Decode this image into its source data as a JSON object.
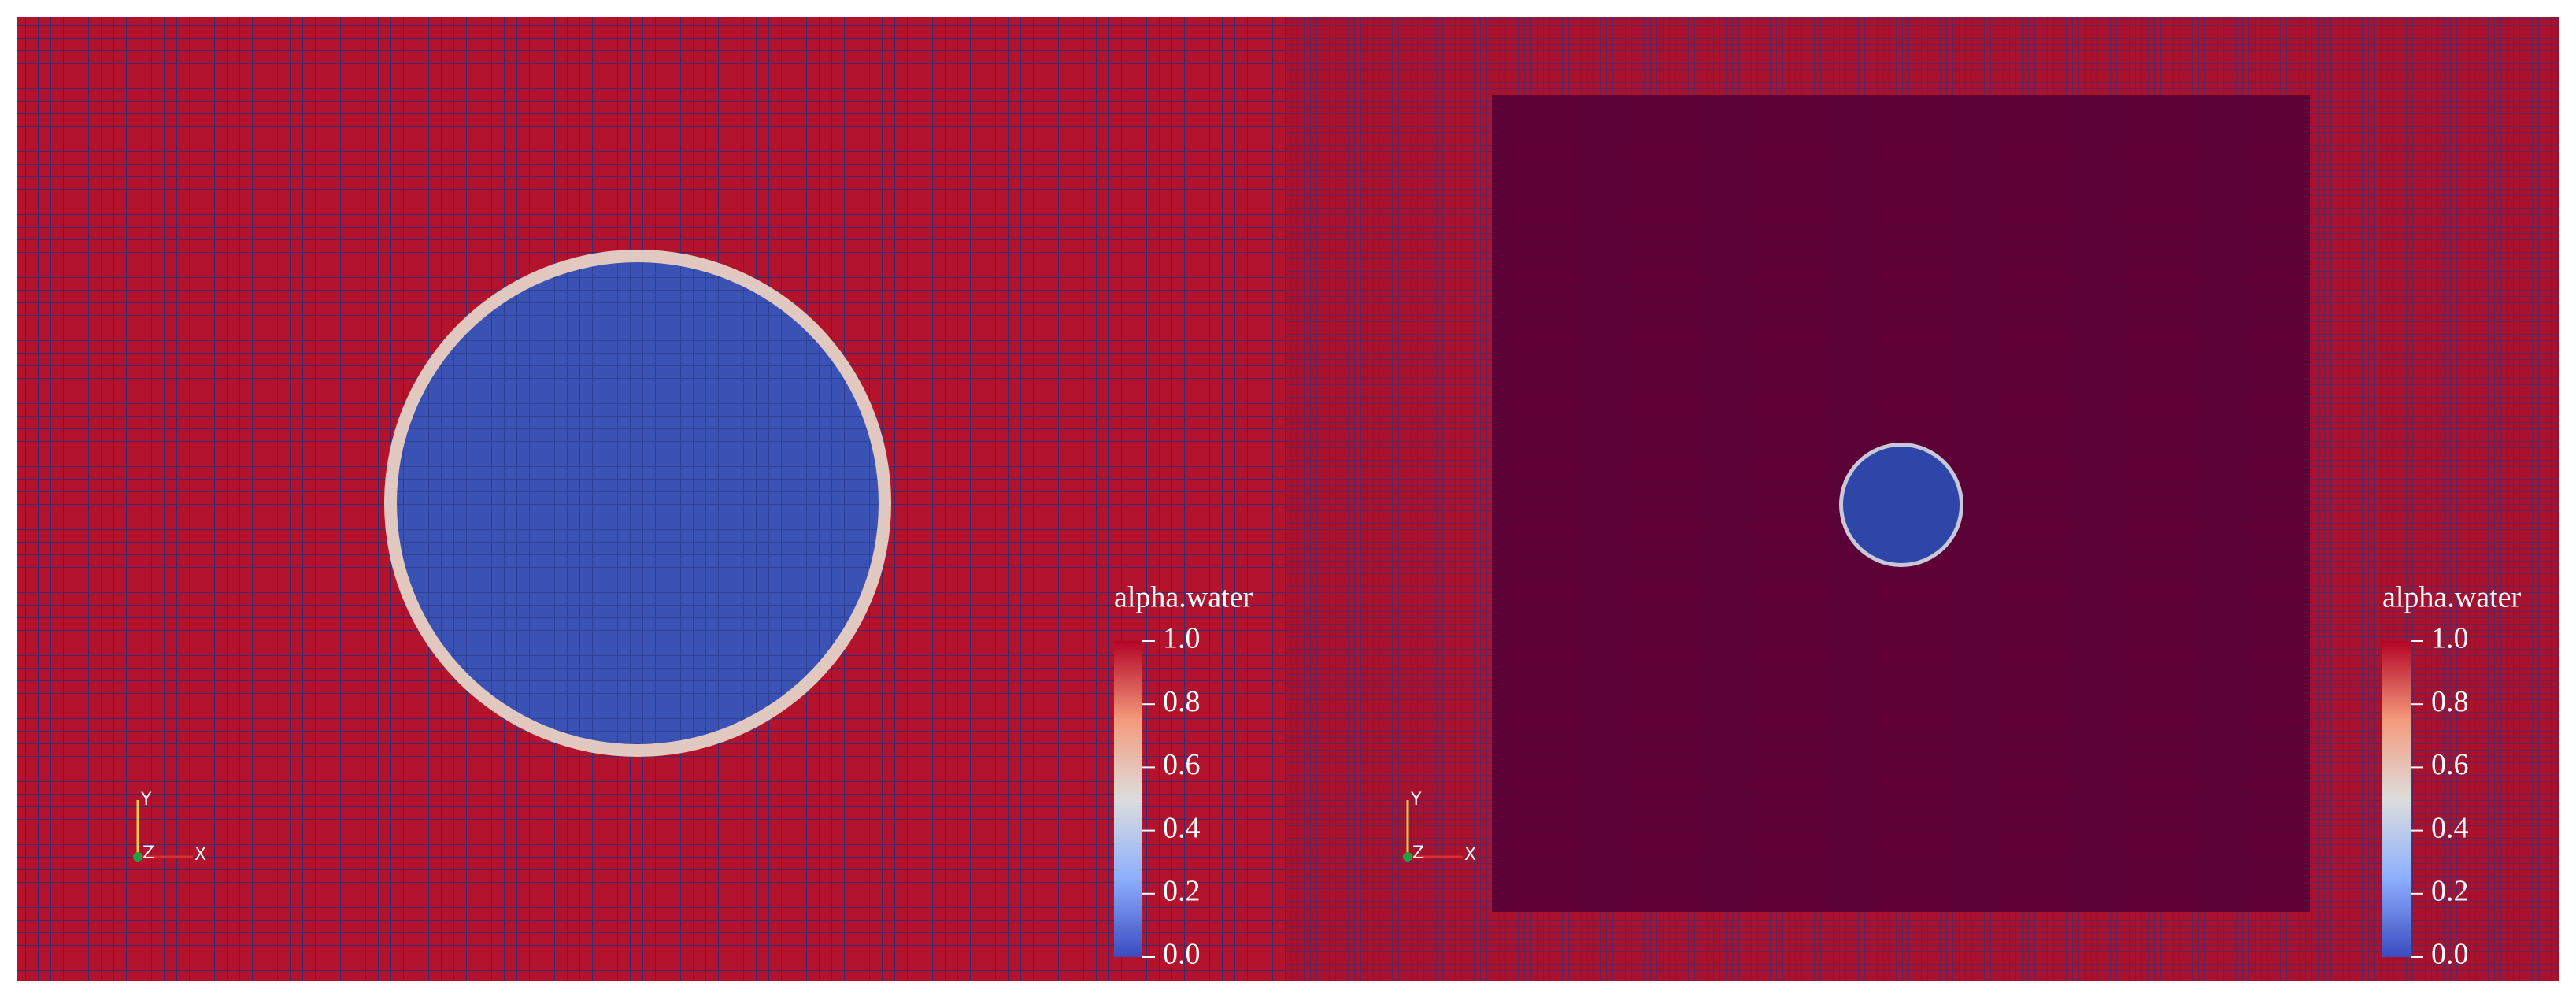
{
  "panels": [
    {
      "colorbar": {
        "title": "alpha.water",
        "range": [
          0,
          1
        ],
        "ticks": [
          {
            "value": 1,
            "label": "1.0"
          },
          {
            "value": 0.8,
            "label": "0.8"
          },
          {
            "value": 0.6,
            "label": "0.6"
          },
          {
            "value": 0.4,
            "label": "0.4"
          },
          {
            "value": 0.2,
            "label": "0.2"
          },
          {
            "value": 0,
            "label": "0.0"
          }
        ]
      },
      "axes": [
        "Y",
        "Z",
        "X"
      ]
    },
    {
      "colorbar": {
        "title": "alpha.water",
        "range": [
          0,
          1
        ],
        "ticks": [
          {
            "value": 1,
            "label": "1.0"
          },
          {
            "value": 0.8,
            "label": "0.8"
          },
          {
            "value": 0.6,
            "label": "0.6"
          },
          {
            "value": 0.4,
            "label": "0.4"
          },
          {
            "value": 0.2,
            "label": "0.2"
          },
          {
            "value": 0,
            "label": "0.0"
          }
        ]
      },
      "axes": [
        "Y",
        "Z",
        "X"
      ]
    }
  ]
}
